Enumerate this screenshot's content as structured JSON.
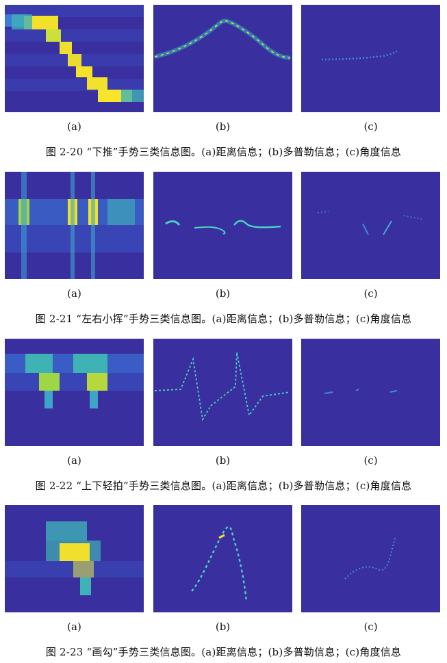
{
  "colors": {
    "bg": "#3b2ea0",
    "teal": "#2fb3b8",
    "cyan": "#46d2c4",
    "yellow": "#f5e52a",
    "blue": "#2f62d8"
  },
  "figures": [
    {
      "caption": "图 2-20 “下推”手势三类信息图。(a)距离信息；(b)多普勒信息；(c)角度信息",
      "labels": [
        "(a)",
        "(b)",
        "(c)"
      ]
    },
    {
      "caption": "图 2-21 “左右小挥”手势三类信息图。(a)距离信息；(b)多普勒信息；(c)角度信息",
      "labels": [
        "(a)",
        "(b)",
        "(c)"
      ]
    },
    {
      "caption": "图 2-22 “上下轻拍”手势三类信息图。(a)距离信息；(b)多普勒信息；(c)角度信息",
      "labels": [
        "(a)",
        "(b)",
        "(c)"
      ]
    },
    {
      "caption": "图 2-23 “画勾”手势三类信息图。(a)距离信息；(b)多普勒信息；(c)角度信息",
      "labels": [
        "(a)",
        "(b)",
        "(c)"
      ]
    }
  ]
}
